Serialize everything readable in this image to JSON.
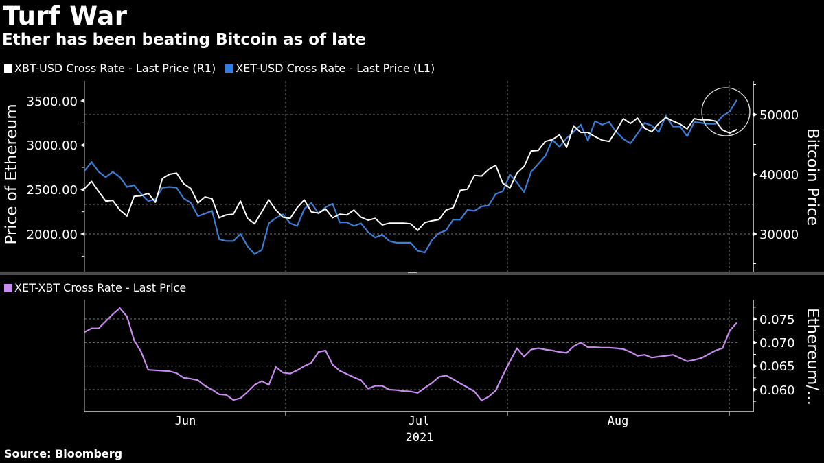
{
  "header": {
    "title": "Turf War",
    "subtitle": "Ether has been beating Bitcoin as of late"
  },
  "source": "Source: Bloomberg",
  "chart_data": [
    {
      "type": "line",
      "panel": "top",
      "legend": [
        {
          "name": "XBT-USD Cross Rate - Last Price (R1)",
          "color": "#ffffff"
        },
        {
          "name": "XET-USD Cross Rate - Last Price (L1)",
          "color": "#3a7fd5"
        }
      ],
      "left_axis": {
        "label": "Price of Ethereum",
        "ticks": [
          "3500.00",
          "3000.00",
          "2500.00",
          "2000.00"
        ],
        "tick_values": [
          3500,
          3000,
          2500,
          2000
        ],
        "range": [
          1730,
          3720
        ]
      },
      "right_axis": {
        "label": "Bitcoin Price",
        "ticks": [
          "50000",
          "40000",
          "30000"
        ],
        "tick_values": [
          50000,
          40000,
          30000
        ],
        "range": [
          24800,
          55800
        ]
      },
      "grid": true,
      "annotation": "circle highlighting latest divergence",
      "series": [
        {
          "name": "XBT-USD Cross Rate - Last Price (R1)",
          "axis": "right",
          "color": "#ffffff",
          "values": [
            37600,
            38800,
            37100,
            35500,
            35600,
            34000,
            33000,
            36300,
            36400,
            36800,
            35300,
            39300,
            40000,
            40200,
            38400,
            37600,
            35200,
            36200,
            35900,
            32700,
            33200,
            33300,
            35500,
            32600,
            31700,
            33700,
            35700,
            34000,
            32800,
            32600,
            34400,
            35700,
            33700,
            33500,
            34200,
            32700,
            33300,
            33200,
            34000,
            32800,
            32300,
            32600,
            31500,
            31800,
            31800,
            31800,
            31700,
            30600,
            31900,
            32200,
            32400,
            34000,
            34400,
            37300,
            37500,
            39800,
            39700,
            40800,
            41500,
            38500,
            37700,
            40200,
            41300,
            43900,
            44000,
            45500,
            45800,
            46600,
            44500,
            48100,
            47000,
            47000,
            46300,
            45700,
            45500,
            47300,
            49300,
            48500,
            49400,
            47700,
            47100,
            48500,
            49500,
            48900,
            48400,
            47600,
            49300,
            49100,
            49100,
            48900,
            47400,
            46900,
            47500
          ]
        },
        {
          "name": "XET-USD Cross Rate - Last Price (L1)",
          "axis": "left",
          "color": "#3a7fd5",
          "values": [
            2710,
            2810,
            2700,
            2640,
            2700,
            2640,
            2530,
            2550,
            2450,
            2370,
            2390,
            2520,
            2530,
            2520,
            2400,
            2350,
            2200,
            2230,
            2260,
            1940,
            1920,
            1920,
            2000,
            1860,
            1770,
            1820,
            2120,
            2180,
            2220,
            2120,
            2090,
            2280,
            2350,
            2230,
            2300,
            2340,
            2130,
            2130,
            2090,
            2120,
            2020,
            1960,
            1990,
            1920,
            1900,
            1900,
            1900,
            1810,
            1790,
            1930,
            2010,
            2040,
            2160,
            2160,
            2270,
            2260,
            2310,
            2320,
            2450,
            2480,
            2670,
            2580,
            2470,
            2700,
            2790,
            2880,
            3060,
            2980,
            3080,
            3150,
            3230,
            3050,
            3270,
            3230,
            3260,
            3150,
            3070,
            3020,
            3130,
            3250,
            3220,
            3150,
            3330,
            3210,
            3210,
            3100,
            3260,
            3250,
            3240,
            3240,
            3330,
            3380,
            3510
          ]
        }
      ]
    },
    {
      "type": "line",
      "panel": "bottom",
      "legend": [
        {
          "name": "XET-XBT Cross Rate - Last Price",
          "color": "#c88bf0"
        }
      ],
      "right_axis": {
        "label": "Ethereum/...",
        "ticks": [
          "0.075",
          "0.070",
          "0.065",
          "0.060"
        ],
        "tick_values": [
          0.075,
          0.07,
          0.065,
          0.06
        ],
        "range": [
          0.0557,
          0.0785
        ]
      },
      "grid": true,
      "series": [
        {
          "name": "XET-XBT Cross Rate - Last Price",
          "color": "#c88bf0",
          "values": [
            0.0722,
            0.073,
            0.073,
            0.0745,
            0.076,
            0.0773,
            0.0755,
            0.0705,
            0.068,
            0.0642,
            0.0641,
            0.064,
            0.0639,
            0.0635,
            0.0625,
            0.0623,
            0.062,
            0.0608,
            0.06,
            0.059,
            0.0589,
            0.0578,
            0.0582,
            0.0595,
            0.061,
            0.0618,
            0.061,
            0.0648,
            0.0636,
            0.0634,
            0.0641,
            0.065,
            0.0657,
            0.068,
            0.0683,
            0.0653,
            0.064,
            0.0633,
            0.0626,
            0.062,
            0.0602,
            0.0608,
            0.0608,
            0.06,
            0.0599,
            0.0597,
            0.0596,
            0.0593,
            0.0604,
            0.0614,
            0.0627,
            0.063,
            0.0622,
            0.0613,
            0.0605,
            0.0596,
            0.0577,
            0.0585,
            0.0598,
            0.063,
            0.066,
            0.0688,
            0.067,
            0.0685,
            0.0688,
            0.0685,
            0.0683,
            0.068,
            0.0678,
            0.0692,
            0.07,
            0.069,
            0.069,
            0.0689,
            0.0689,
            0.0688,
            0.0686,
            0.068,
            0.0672,
            0.0674,
            0.0668,
            0.067,
            0.0672,
            0.0674,
            0.0667,
            0.066,
            0.0663,
            0.0667,
            0.0675,
            0.0683,
            0.0688,
            0.0725,
            0.0742
          ]
        }
      ]
    },
    {
      "type": "axis",
      "x_ticks": [
        "Jun",
        "Jul",
        "Aug"
      ],
      "x_year": "2021"
    }
  ]
}
